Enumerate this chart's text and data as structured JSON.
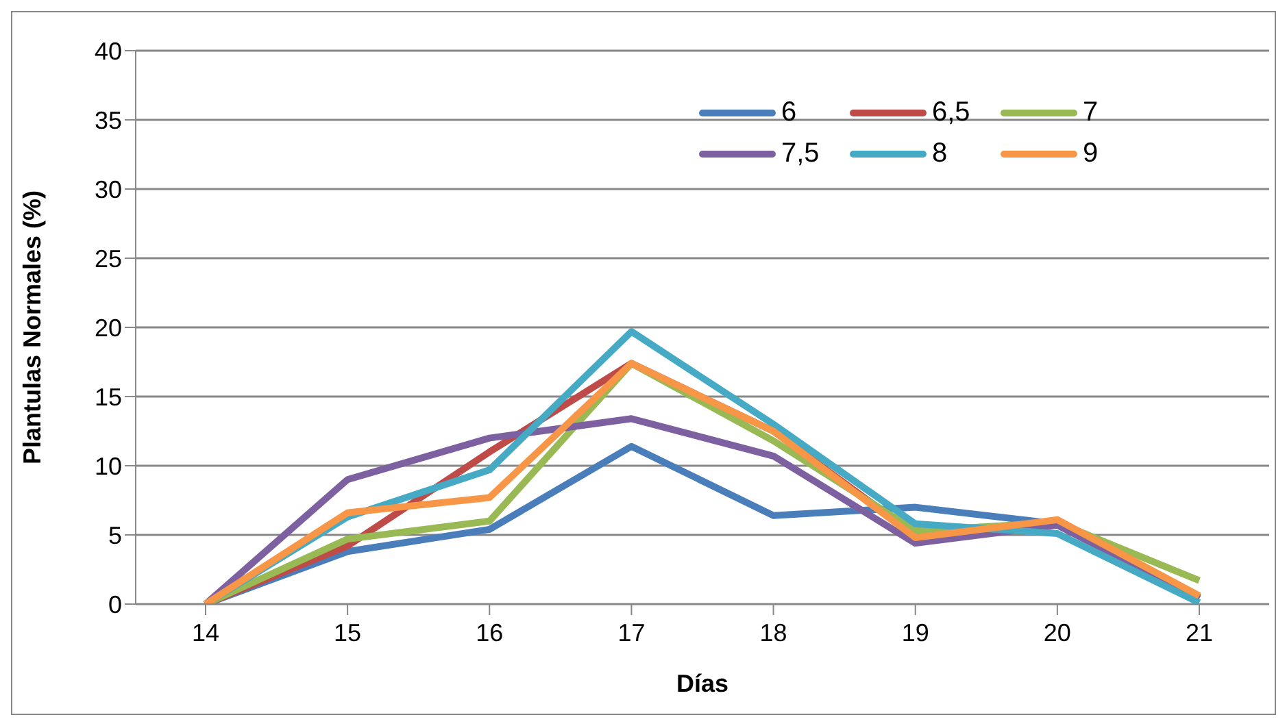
{
  "chart_data": {
    "type": "line",
    "xlabel": "Días",
    "ylabel": "Plantulas Normales (%)",
    "categories": [
      "14",
      "15",
      "16",
      "17",
      "18",
      "19",
      "20",
      "21"
    ],
    "series": [
      {
        "name": "6",
        "color": "#4a7ebb",
        "values": [
          0,
          3.8,
          5.4,
          11.4,
          6.4,
          7.0,
          5.8,
          0.4
        ]
      },
      {
        "name": "6,5",
        "color": "#be4b48",
        "values": [
          0,
          4.2,
          11,
          17.4,
          12.5,
          5.0,
          6.0,
          0.5
        ]
      },
      {
        "name": "7",
        "color": "#98b954",
        "values": [
          0,
          4.7,
          6.0,
          17.4,
          11.8,
          5.3,
          5.9,
          1.7
        ]
      },
      {
        "name": "7,5",
        "color": "#7d60a0",
        "values": [
          0,
          9.0,
          12.0,
          13.4,
          10.7,
          4.4,
          5.7,
          0.4
        ]
      },
      {
        "name": "8",
        "color": "#46aac5",
        "values": [
          0,
          6.3,
          9.7,
          19.7,
          13.0,
          5.8,
          5.1,
          0.1
        ]
      },
      {
        "name": "9",
        "color": "#f79646",
        "values": [
          0,
          6.6,
          7.7,
          17.4,
          12.5,
          4.8,
          6.1,
          0.6
        ]
      }
    ],
    "ylim": [
      0,
      40
    ],
    "yticks": [
      0,
      5,
      10,
      15,
      20,
      25,
      30,
      35,
      40
    ],
    "grid": "y",
    "legend": "top right",
    "marker": "none",
    "line_style": "solid"
  }
}
